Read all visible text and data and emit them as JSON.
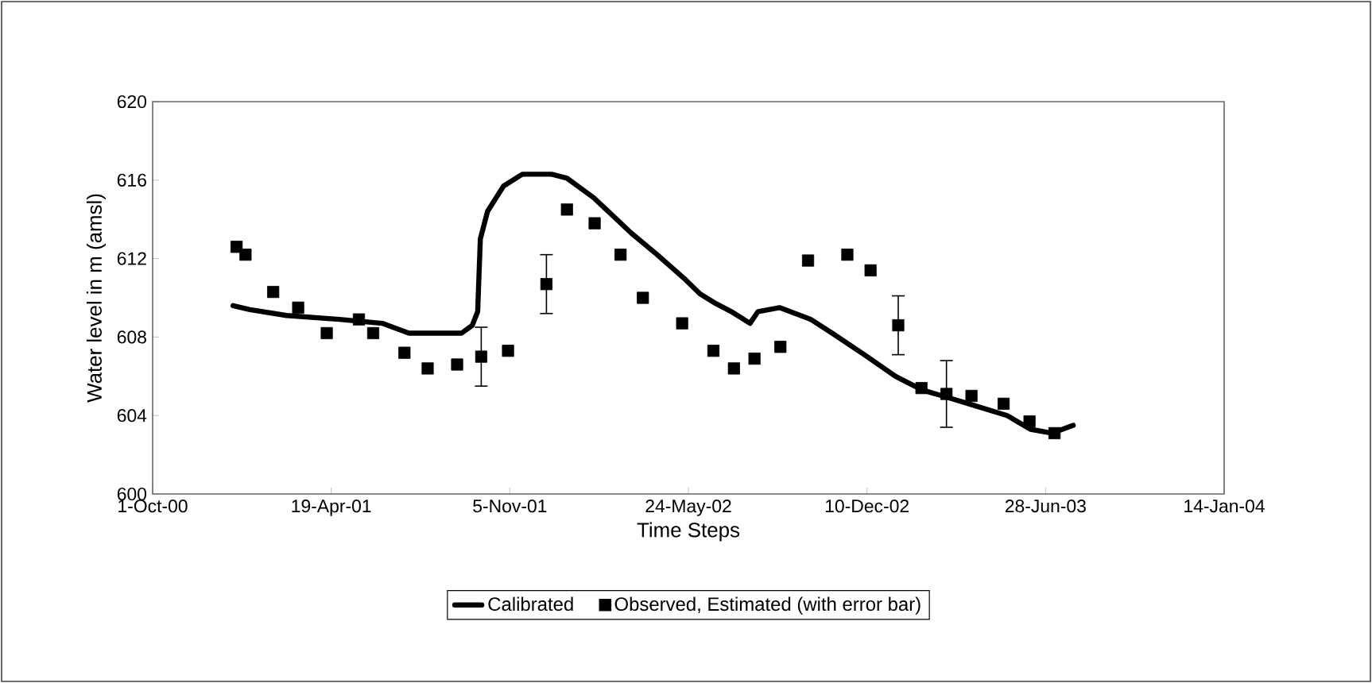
{
  "chart_data": {
    "type": "line",
    "xlabel": "Time Steps",
    "ylabel": "Water level in m (amsl)",
    "xlim": [
      "2000-10-01",
      "2004-01-14"
    ],
    "xticks": [
      {
        "value": "2000-10-01",
        "label": "1-Oct-00"
      },
      {
        "value": "2001-04-19",
        "label": "19-Apr-01"
      },
      {
        "value": "2001-11-05",
        "label": "5-Nov-01"
      },
      {
        "value": "2002-05-24",
        "label": "24-May-02"
      },
      {
        "value": "2002-12-10",
        "label": "10-Dec-02"
      },
      {
        "value": "2003-06-28",
        "label": "28-Jun-03"
      },
      {
        "value": "2004-01-14",
        "label": "14-Jan-04"
      }
    ],
    "ylim": [
      600,
      620
    ],
    "yticks": [
      600,
      604,
      608,
      612,
      616,
      620
    ],
    "grid": false,
    "legend": "bottom",
    "series": [
      {
        "name": "Calibrated",
        "color": "#000000",
        "line_style": "solid",
        "x": [
          "2000-12-30",
          "2001-01-18",
          "2001-02-28",
          "2001-04-28",
          "2001-06-15",
          "2001-07-15",
          "2001-08-01",
          "2001-09-12",
          "2001-09-24",
          "2001-09-30",
          "2001-10-03",
          "2001-10-11",
          "2001-10-29",
          "2001-11-19",
          "2001-12-22",
          "2002-01-08",
          "2002-02-07",
          "2002-03-21",
          "2002-04-19",
          "2002-05-19",
          "2002-06-06",
          "2002-06-24",
          "2002-07-11",
          "2002-08-01",
          "2002-08-10",
          "2002-09-03",
          "2002-10-08",
          "2002-11-01",
          "2002-12-07",
          "2003-01-11",
          "2003-02-10",
          "2003-03-12",
          "2003-04-10",
          "2003-05-16",
          "2003-06-11",
          "2003-07-05",
          "2003-07-29"
        ],
        "values": [
          609.6,
          609.4,
          609.1,
          608.9,
          608.7,
          608.2,
          608.2,
          608.2,
          608.6,
          609.3,
          613.0,
          614.4,
          615.7,
          616.3,
          616.3,
          616.1,
          615.1,
          613.3,
          612.2,
          611.0,
          610.2,
          609.7,
          609.3,
          608.7,
          609.3,
          609.5,
          608.9,
          608.2,
          607.1,
          606.0,
          605.3,
          604.9,
          604.5,
          604.0,
          603.3,
          603.1,
          603.5
        ]
      },
      {
        "name": "Observed, Estimated (with error bar)",
        "type": "scatter",
        "marker": "square",
        "color": "#000000",
        "x": [
          "2001-01-03",
          "2001-01-13",
          "2001-02-13",
          "2001-03-13",
          "2001-04-14",
          "2001-05-20",
          "2001-06-05",
          "2001-07-10",
          "2001-08-05",
          "2001-09-07",
          "2001-10-04",
          "2001-11-03",
          "2001-12-16",
          "2002-01-08",
          "2002-02-08",
          "2002-03-09",
          "2002-04-03",
          "2002-05-17",
          "2002-06-21",
          "2002-07-14",
          "2002-08-06",
          "2002-09-04",
          "2002-10-05",
          "2002-11-18",
          "2002-12-14",
          "2003-01-14",
          "2003-02-09",
          "2003-03-09",
          "2003-04-06",
          "2003-05-12",
          "2003-06-10",
          "2003-07-08"
        ],
        "values": [
          612.6,
          612.2,
          610.3,
          609.5,
          608.2,
          608.9,
          608.2,
          607.2,
          606.4,
          606.6,
          607.0,
          607.3,
          610.7,
          614.5,
          613.8,
          612.2,
          610.0,
          608.7,
          607.3,
          606.4,
          606.9,
          607.5,
          611.9,
          612.2,
          611.4,
          608.6,
          605.4,
          605.1,
          605.0,
          604.6,
          603.7,
          603.1
        ],
        "errors": [
          null,
          null,
          null,
          null,
          null,
          null,
          null,
          null,
          null,
          null,
          1.5,
          null,
          1.5,
          null,
          null,
          null,
          null,
          null,
          null,
          null,
          null,
          null,
          null,
          null,
          null,
          1.5,
          null,
          1.7,
          null,
          null,
          null,
          null
        ]
      }
    ]
  }
}
